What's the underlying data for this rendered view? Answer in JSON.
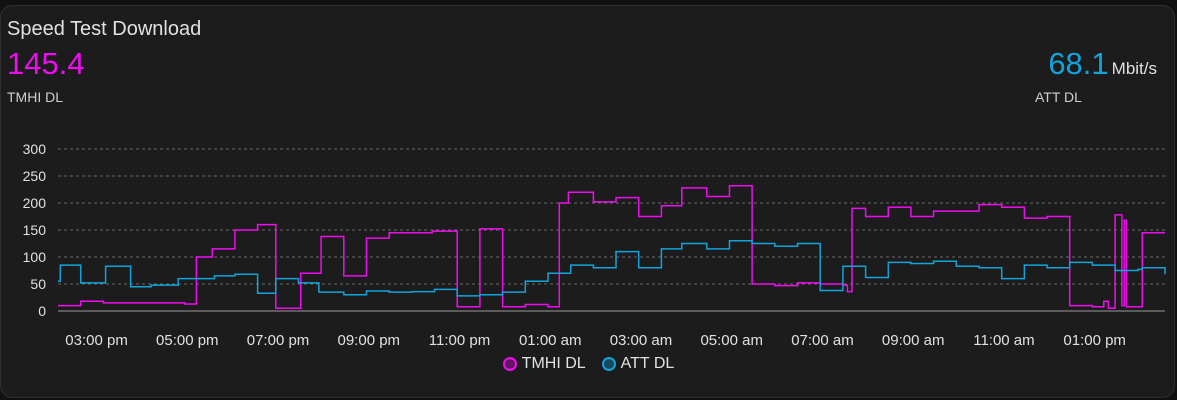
{
  "card": {
    "title": "Speed Test Download",
    "primary": {
      "value": "145.4",
      "label": "TMHI DL",
      "color": "#f00cf0"
    },
    "secondary": {
      "value": "68.1",
      "unit": "Mbit/s",
      "label": "ATT DL",
      "color": "#12a3dc"
    }
  },
  "chart_data": {
    "type": "line",
    "x_range": [
      14.15,
      38.55
    ],
    "ylim": [
      0,
      300
    ],
    "y_ticks": [
      0,
      50,
      100,
      150,
      200,
      250,
      300
    ],
    "x_ticks": [
      {
        "x": 15,
        "label": "03:00 pm"
      },
      {
        "x": 17,
        "label": "05:00 pm"
      },
      {
        "x": 19,
        "label": "07:00 pm"
      },
      {
        "x": 21,
        "label": "09:00 pm"
      },
      {
        "x": 23,
        "label": "11:00 pm"
      },
      {
        "x": 25,
        "label": "01:00 am"
      },
      {
        "x": 27,
        "label": "03:00 am"
      },
      {
        "x": 29,
        "label": "05:00 am"
      },
      {
        "x": 31,
        "label": "07:00 am"
      },
      {
        "x": 33,
        "label": "09:00 am"
      },
      {
        "x": 35,
        "label": "11:00 am"
      },
      {
        "x": 37,
        "label": "01:00 pm"
      }
    ],
    "grid": true,
    "legend": "bottom",
    "series": [
      {
        "name": "TMHI DL",
        "color": "#f00cf0",
        "step": true,
        "points": [
          [
            14.15,
            10
          ],
          [
            14.65,
            18
          ],
          [
            15.15,
            15
          ],
          [
            15.65,
            15
          ],
          [
            16.1,
            15
          ],
          [
            16.4,
            15
          ],
          [
            16.95,
            13
          ],
          [
            17.2,
            100
          ],
          [
            17.5,
            100
          ],
          [
            17.55,
            115
          ],
          [
            18.05,
            150
          ],
          [
            18.55,
            160
          ],
          [
            18.95,
            5
          ],
          [
            19.5,
            70
          ],
          [
            19.95,
            138
          ],
          [
            20.45,
            65
          ],
          [
            20.95,
            135
          ],
          [
            21.45,
            145
          ],
          [
            21.85,
            145
          ],
          [
            22.4,
            148
          ],
          [
            22.45,
            148
          ],
          [
            22.95,
            8
          ],
          [
            23.45,
            152
          ],
          [
            23.95,
            8
          ],
          [
            24.45,
            12
          ],
          [
            24.95,
            8
          ],
          [
            25.2,
            200
          ],
          [
            25.4,
            220
          ],
          [
            25.65,
            220
          ],
          [
            25.95,
            202
          ],
          [
            26.45,
            210
          ],
          [
            26.95,
            175
          ],
          [
            27.45,
            195
          ],
          [
            27.9,
            228
          ],
          [
            28.45,
            212
          ],
          [
            28.95,
            232
          ],
          [
            29.45,
            50
          ],
          [
            29.95,
            47
          ],
          [
            30.45,
            52
          ],
          [
            30.95,
            50
          ],
          [
            31.45,
            48
          ],
          [
            31.55,
            36
          ],
          [
            31.65,
            190
          ],
          [
            31.95,
            175
          ],
          [
            32.45,
            192
          ],
          [
            32.95,
            175
          ],
          [
            33.45,
            185
          ],
          [
            33.95,
            185
          ],
          [
            34.45,
            197
          ],
          [
            34.95,
            192
          ],
          [
            35.45,
            172
          ],
          [
            35.95,
            175
          ],
          [
            36.45,
            10
          ],
          [
            36.95,
            8
          ],
          [
            37.2,
            18
          ],
          [
            37.3,
            5
          ],
          [
            37.45,
            178
          ],
          [
            37.6,
            10
          ],
          [
            37.65,
            168
          ],
          [
            37.7,
            8
          ],
          [
            38.05,
            145
          ],
          [
            38.55,
            145
          ]
        ]
      },
      {
        "name": "ATT DL",
        "color": "#12a3dc",
        "step": true,
        "points": [
          [
            14.15,
            55
          ],
          [
            14.2,
            85
          ],
          [
            14.65,
            52
          ],
          [
            15.2,
            83
          ],
          [
            15.75,
            45
          ],
          [
            16.2,
            48
          ],
          [
            16.8,
            60
          ],
          [
            17.5,
            60
          ],
          [
            17.6,
            65
          ],
          [
            18.05,
            68
          ],
          [
            18.55,
            33
          ],
          [
            18.95,
            60
          ],
          [
            19.45,
            52
          ],
          [
            19.9,
            35
          ],
          [
            20.45,
            30
          ],
          [
            20.95,
            37
          ],
          [
            21.45,
            35
          ],
          [
            21.95,
            36
          ],
          [
            22.45,
            40
          ],
          [
            22.95,
            28
          ],
          [
            23.45,
            30
          ],
          [
            23.95,
            35
          ],
          [
            24.45,
            55
          ],
          [
            24.95,
            70
          ],
          [
            25.45,
            85
          ],
          [
            25.95,
            80
          ],
          [
            26.45,
            110
          ],
          [
            26.95,
            80
          ],
          [
            27.45,
            115
          ],
          [
            27.9,
            125
          ],
          [
            28.45,
            115
          ],
          [
            28.95,
            130
          ],
          [
            29.45,
            125
          ],
          [
            29.95,
            120
          ],
          [
            30.45,
            125
          ],
          [
            30.95,
            38
          ],
          [
            31.45,
            83
          ],
          [
            31.95,
            62
          ],
          [
            32.45,
            90
          ],
          [
            32.95,
            88
          ],
          [
            33.45,
            92
          ],
          [
            33.95,
            83
          ],
          [
            34.45,
            80
          ],
          [
            34.95,
            60
          ],
          [
            35.45,
            85
          ],
          [
            35.95,
            80
          ],
          [
            36.45,
            90
          ],
          [
            36.95,
            85
          ],
          [
            37.45,
            75
          ],
          [
            37.95,
            77
          ],
          [
            38.05,
            80
          ],
          [
            38.55,
            68
          ]
        ]
      }
    ]
  }
}
